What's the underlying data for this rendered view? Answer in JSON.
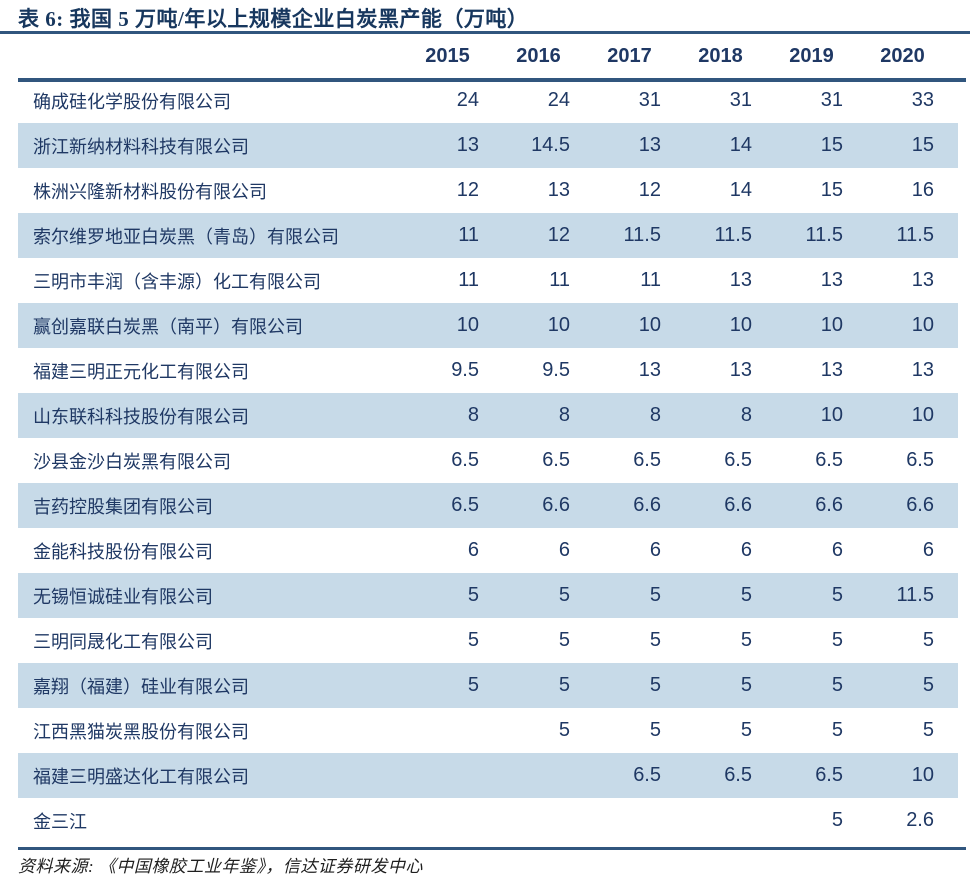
{
  "title": "表 6:  我国 5 万吨/年以上规模企业白炭黑产能（万吨）",
  "table": {
    "year_columns": [
      "2015",
      "2016",
      "2017",
      "2018",
      "2019",
      "2020"
    ],
    "rows": [
      {
        "company": "确成硅化学股份有限公司",
        "values": [
          "24",
          "24",
          "31",
          "31",
          "31",
          "33"
        ]
      },
      {
        "company": "浙江新纳材料科技有限公司",
        "values": [
          "13",
          "14.5",
          "13",
          "14",
          "15",
          "15"
        ]
      },
      {
        "company": "株洲兴隆新材料股份有限公司",
        "values": [
          "12",
          "13",
          "12",
          "14",
          "15",
          "16"
        ]
      },
      {
        "company": "索尔维罗地亚白炭黑（青岛）有限公司",
        "values": [
          "11",
          "12",
          "11.5",
          "11.5",
          "11.5",
          "11.5"
        ]
      },
      {
        "company": "三明市丰润（含丰源）化工有限公司",
        "values": [
          "11",
          "11",
          "11",
          "13",
          "13",
          "13"
        ]
      },
      {
        "company": "赢创嘉联白炭黑（南平）有限公司",
        "values": [
          "10",
          "10",
          "10",
          "10",
          "10",
          "10"
        ]
      },
      {
        "company": "福建三明正元化工有限公司",
        "values": [
          "9.5",
          "9.5",
          "13",
          "13",
          "13",
          "13"
        ]
      },
      {
        "company": "山东联科科技股份有限公司",
        "values": [
          "8",
          "8",
          "8",
          "8",
          "10",
          "10"
        ]
      },
      {
        "company": "沙县金沙白炭黑有限公司",
        "values": [
          "6.5",
          "6.5",
          "6.5",
          "6.5",
          "6.5",
          "6.5"
        ]
      },
      {
        "company": "吉药控股集团有限公司",
        "values": [
          "6.5",
          "6.6",
          "6.6",
          "6.6",
          "6.6",
          "6.6"
        ]
      },
      {
        "company": "金能科技股份有限公司",
        "values": [
          "6",
          "6",
          "6",
          "6",
          "6",
          "6"
        ]
      },
      {
        "company": "无锡恒诚硅业有限公司",
        "values": [
          "5",
          "5",
          "5",
          "5",
          "5",
          "11.5"
        ]
      },
      {
        "company": "三明同晟化工有限公司",
        "values": [
          "5",
          "5",
          "5",
          "5",
          "5",
          "5"
        ]
      },
      {
        "company": "嘉翔（福建）硅业有限公司",
        "values": [
          "5",
          "5",
          "5",
          "5",
          "5",
          "5"
        ]
      },
      {
        "company": "江西黑猫炭黑股份有限公司",
        "values": [
          "",
          "5",
          "5",
          "5",
          "5",
          "5"
        ]
      },
      {
        "company": "福建三明盛达化工有限公司",
        "values": [
          "",
          "",
          "6.5",
          "6.5",
          "6.5",
          "10"
        ]
      },
      {
        "company": "金三江",
        "values": [
          "",
          "",
          "",
          "",
          "5",
          "2.6"
        ]
      }
    ]
  },
  "footer": {
    "source": "资料来源: 《中国橡胶工业年鉴》，信达证券研发中心"
  },
  "colors": {
    "text_navy": "#1F3864",
    "title_navy": "#17375E",
    "rule_navy": "#31567E",
    "zebra_blue": "#C7DAE8"
  }
}
